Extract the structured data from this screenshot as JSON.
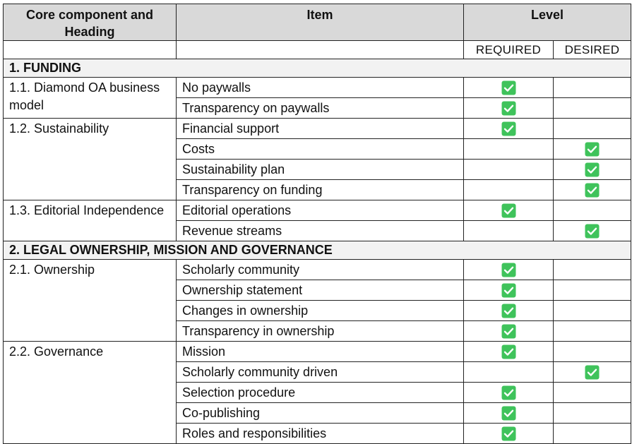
{
  "header": {
    "columns": [
      "Core component and Heading",
      "Item",
      "Level"
    ],
    "levels": [
      "REQUIRED",
      "DESIRED"
    ]
  },
  "sections": [
    {
      "title": "1.  FUNDING",
      "groups": [
        {
          "title": "1.1. Diamond OA business model",
          "items": [
            {
              "name": "No paywalls",
              "checks": [
                true,
                false
              ]
            },
            {
              "name": "Transparency on paywalls",
              "checks": [
                true,
                false
              ]
            }
          ]
        },
        {
          "title": "1.2. Sustainability",
          "items": [
            {
              "name": "Financial support",
              "checks": [
                true,
                false
              ]
            },
            {
              "name": "Costs",
              "checks": [
                false,
                true
              ]
            },
            {
              "name": "Sustainability plan",
              "checks": [
                false,
                true
              ]
            },
            {
              "name": "Transparency on funding",
              "checks": [
                false,
                true
              ]
            }
          ]
        },
        {
          "title": "1.3. Editorial Independence",
          "items": [
            {
              "name": "Editorial operations",
              "checks": [
                true,
                false
              ]
            },
            {
              "name": "Revenue streams",
              "checks": [
                false,
                true
              ]
            }
          ]
        }
      ]
    },
    {
      "title": "2.  LEGAL OWNERSHIP, MISSION AND GOVERNANCE",
      "groups": [
        {
          "title": "2.1. Ownership",
          "items": [
            {
              "name": "Scholarly community",
              "checks": [
                true,
                false
              ]
            },
            {
              "name": "Ownership statement",
              "checks": [
                true,
                false
              ]
            },
            {
              "name": "Changes in ownership",
              "checks": [
                true,
                false
              ]
            },
            {
              "name": "Transparency in ownership",
              "checks": [
                true,
                false
              ]
            }
          ]
        },
        {
          "title": "2.2. Governance",
          "items": [
            {
              "name": "Mission",
              "checks": [
                true,
                false
              ]
            },
            {
              "name": "Scholarly community driven",
              "checks": [
                false,
                true
              ]
            },
            {
              "name": "Selection procedure",
              "checks": [
                true,
                false
              ]
            },
            {
              "name": "Co-publishing",
              "checks": [
                true,
                false
              ]
            },
            {
              "name": "Roles and responsibilities",
              "checks": [
                true,
                false
              ]
            }
          ]
        }
      ]
    }
  ]
}
